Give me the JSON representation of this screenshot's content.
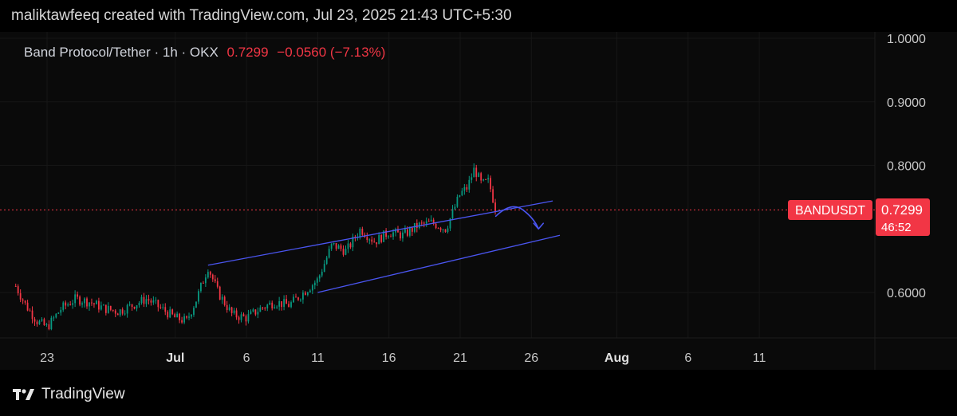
{
  "header": {
    "credit": "maliktawfeeq created with TradingView.com, Jul 23, 2025 21:43 UTC+5:30"
  },
  "legend": {
    "symbol": "Band Protocol/Tether · 1h · OKX",
    "price": "0.7299",
    "change": "−0.0560 (−7.13%)"
  },
  "price_tag": {
    "ticker": "BANDUSDT",
    "price": "0.7299",
    "countdown": "46:52"
  },
  "footer": {
    "brand": "TradingView"
  },
  "colors": {
    "down": "#f23645",
    "up": "#089981",
    "channel": "#4a55f0",
    "background": "#0a0a0a",
    "price_line": "#f23645"
  },
  "chart_data": {
    "type": "candlestick",
    "interval": "1h",
    "ylim": [
      0.53,
      1.03
    ],
    "y_ticks": [
      {
        "label": "1.0000",
        "value": 1.0
      },
      {
        "label": "0.9000",
        "value": 0.9
      },
      {
        "label": "0.8000",
        "value": 0.8
      },
      {
        "label": "0.6000",
        "value": 0.6
      }
    ],
    "x_ticks": [
      {
        "label": "23",
        "day": -8,
        "bold": false
      },
      {
        "label": "Jul",
        "day": 1,
        "bold": true
      },
      {
        "label": "6",
        "day": 6,
        "bold": false
      },
      {
        "label": "11",
        "day": 11,
        "bold": false
      },
      {
        "label": "16",
        "day": 16,
        "bold": false
      },
      {
        "label": "21",
        "day": 21,
        "bold": false
      },
      {
        "label": "26",
        "day": 26,
        "bold": false
      },
      {
        "label": "Aug",
        "day": 32,
        "bold": true
      },
      {
        "label": "6",
        "day": 37,
        "bold": false
      },
      {
        "label": "11",
        "day": 42,
        "bold": false
      }
    ],
    "last_price": 0.7299,
    "price_path": [
      [
        -10.2,
        0.61
      ],
      [
        -9.5,
        0.58
      ],
      [
        -8.7,
        0.555
      ],
      [
        -8.0,
        0.545
      ],
      [
        -7.0,
        0.575
      ],
      [
        -6.0,
        0.59
      ],
      [
        -5.0,
        0.585
      ],
      [
        -4.0,
        0.575
      ],
      [
        -3.0,
        0.57
      ],
      [
        -2.0,
        0.58
      ],
      [
        -1.0,
        0.59
      ],
      [
        0.0,
        0.575
      ],
      [
        1.0,
        0.56
      ],
      [
        1.8,
        0.555
      ],
      [
        2.5,
        0.59
      ],
      [
        3.3,
        0.64
      ],
      [
        4.0,
        0.6
      ],
      [
        5.0,
        0.565
      ],
      [
        6.0,
        0.56
      ],
      [
        7.0,
        0.575
      ],
      [
        8.0,
        0.585
      ],
      [
        9.0,
        0.58
      ],
      [
        10.0,
        0.6
      ],
      [
        11.0,
        0.62
      ],
      [
        12.0,
        0.675
      ],
      [
        13.0,
        0.665
      ],
      [
        14.0,
        0.7
      ],
      [
        15.0,
        0.68
      ],
      [
        16.0,
        0.695
      ],
      [
        17.0,
        0.69
      ],
      [
        18.0,
        0.705
      ],
      [
        19.0,
        0.71
      ],
      [
        20.0,
        0.7
      ],
      [
        21.0,
        0.755
      ],
      [
        21.5,
        0.765
      ],
      [
        22.0,
        0.795
      ],
      [
        22.5,
        0.77
      ],
      [
        23.0,
        0.775
      ],
      [
        23.5,
        0.73
      ]
    ],
    "channel_upper": [
      [
        3.3,
        0.643
      ],
      [
        27.5,
        0.744
      ]
    ],
    "channel_lower": [
      [
        11.0,
        0.6
      ],
      [
        28.0,
        0.69
      ]
    ],
    "projection": [
      [
        23.5,
        0.72
      ],
      [
        24.6,
        0.736
      ],
      [
        25.4,
        0.73
      ],
      [
        26.5,
        0.7
      ]
    ]
  }
}
